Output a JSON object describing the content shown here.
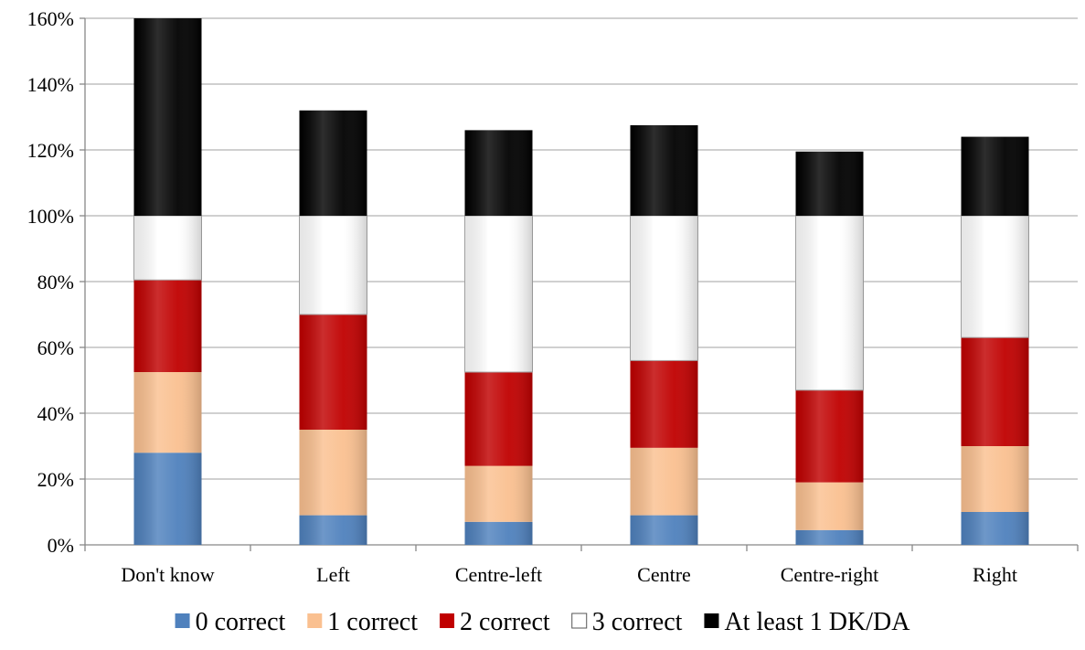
{
  "chart_data": {
    "type": "bar",
    "stacked": true,
    "title": "",
    "xlabel": "",
    "ylabel": "",
    "ylim": [
      0,
      160
    ],
    "y_ticks": [
      0,
      20,
      40,
      60,
      80,
      100,
      120,
      140,
      160
    ],
    "y_tick_labels": [
      "0%",
      "20%",
      "40%",
      "60%",
      "80%",
      "100%",
      "120%",
      "140%",
      "160%"
    ],
    "grid": true,
    "legend_position": "bottom",
    "categories": [
      "Don't know",
      "Left",
      "Centre-left",
      "Centre",
      "Centre-right",
      "Right"
    ],
    "series": [
      {
        "name": "0 correct",
        "color": "#4f81bd",
        "values": [
          28,
          9,
          7,
          9,
          4.5,
          10
        ]
      },
      {
        "name": "1 correct",
        "color": "#fac090",
        "values": [
          24.5,
          26,
          17,
          20.5,
          14.5,
          20
        ]
      },
      {
        "name": "2 correct",
        "color": "#c00000",
        "values": [
          28,
          35,
          28.5,
          26.5,
          28,
          33
        ]
      },
      {
        "name": "3 correct",
        "color": "#ffffff",
        "values": [
          19.5,
          30,
          47.5,
          44,
          53,
          37
        ]
      },
      {
        "name": "At least 1 DK/DA",
        "color": "#000000",
        "values": [
          60,
          32,
          26,
          27.5,
          19.5,
          24
        ]
      }
    ]
  }
}
